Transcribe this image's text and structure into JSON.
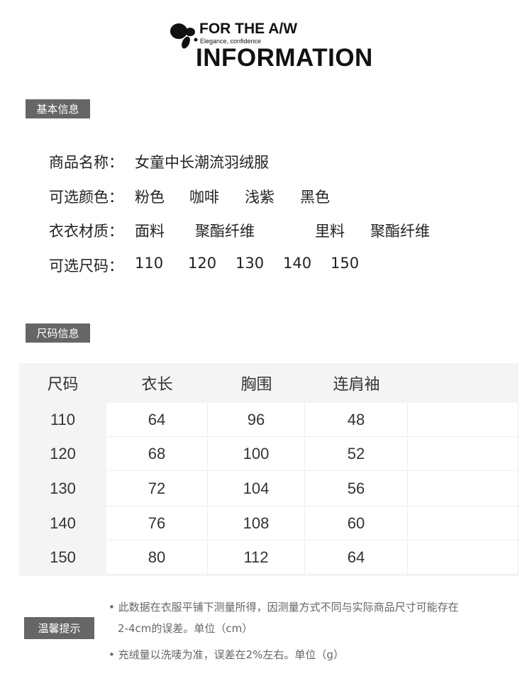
{
  "header": {
    "line1": "FOR THE A/W",
    "line2": "Elegance, confidence",
    "line3": "INFORMATION",
    "logo_icon": "butterfly-icon"
  },
  "basic": {
    "title": "基本信息",
    "name_label": "商品名称：",
    "name_value": "女童中长潮流羽绒服",
    "color_label": "可选颜色：",
    "colors": [
      "粉色",
      "咖啡",
      "浅紫",
      "黑色"
    ],
    "material_label": "衣衣材质：",
    "materials": [
      "面料",
      "聚酯纤维",
      "里料",
      "聚酯纤维"
    ],
    "size_label": "可选尺码：",
    "sizes": [
      "110",
      "120",
      "130",
      "140",
      "150"
    ]
  },
  "size_table": {
    "title": "尺码信息",
    "headers": [
      "尺码",
      "衣长",
      "胸围",
      "连肩袖"
    ],
    "rows": [
      [
        "110",
        "64",
        "96",
        "48"
      ],
      [
        "120",
        "68",
        "100",
        "52"
      ],
      [
        "130",
        "72",
        "104",
        "56"
      ],
      [
        "140",
        "76",
        "108",
        "60"
      ],
      [
        "150",
        "80",
        "112",
        "64"
      ]
    ]
  },
  "tips": {
    "title": "温馨提示",
    "note1_line1": "此数据在衣服平铺下测量所得，因测量方式不同与实际商品尺寸可能存在",
    "note1_line2": "2-4cm的误差。单位（cm）",
    "note2": "充绒量以洗唛为准，误差在2%左右。单位（g）"
  }
}
